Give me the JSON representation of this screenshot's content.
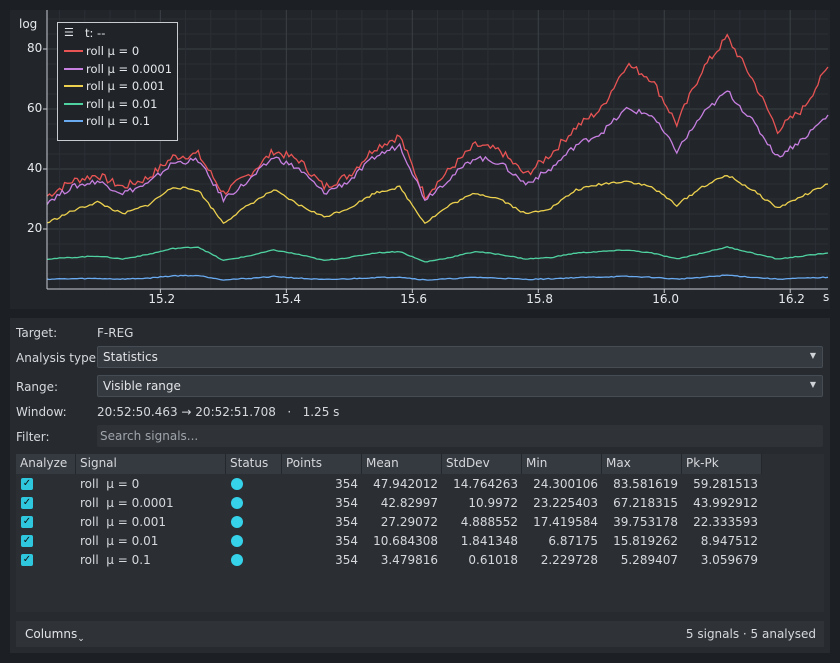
{
  "plot": {
    "y_axis_label": "log",
    "x_unit": "s",
    "legend_title": "t: --",
    "legend_menu_icon": "menu-icon",
    "y_ticks": [
      "20",
      "40",
      "60",
      "80"
    ],
    "x_ticks": [
      "15.2",
      "15.4",
      "15.6",
      "15.8",
      "16.0",
      "16.2"
    ],
    "x_range": [
      15.02,
      16.26
    ],
    "y_range": [
      0,
      93
    ],
    "background": "#22262b",
    "grid": true
  },
  "chart_data": {
    "type": "line",
    "title": "",
    "xlabel": "s",
    "ylabel": "log",
    "xlim": [
      15.02,
      16.26
    ],
    "ylim": [
      0,
      93
    ],
    "legend_position": "top-left",
    "series": [
      {
        "name": "roll μ = 0",
        "color": "#e85353",
        "x": [
          15.02,
          15.06,
          15.1,
          15.14,
          15.18,
          15.22,
          15.26,
          15.3,
          15.34,
          15.38,
          15.42,
          15.46,
          15.5,
          15.54,
          15.58,
          15.62,
          15.66,
          15.7,
          15.74,
          15.78,
          15.82,
          15.86,
          15.9,
          15.94,
          15.98,
          16.02,
          16.06,
          16.1,
          16.14,
          16.18,
          16.22,
          16.26
        ],
        "values": [
          31,
          36,
          38,
          34,
          37,
          44,
          45,
          32,
          38,
          46,
          43,
          34,
          38,
          47,
          51,
          31,
          40,
          48,
          46,
          38,
          45,
          54,
          60,
          75,
          70,
          55,
          73,
          84,
          70,
          53,
          60,
          74
        ]
      },
      {
        "name": "roll μ = 0.0001",
        "color": "#c77fe0",
        "x": [
          15.02,
          15.06,
          15.1,
          15.14,
          15.18,
          15.22,
          15.26,
          15.3,
          15.34,
          15.38,
          15.42,
          15.46,
          15.5,
          15.54,
          15.58,
          15.62,
          15.66,
          15.7,
          15.74,
          15.78,
          15.82,
          15.86,
          15.9,
          15.94,
          15.98,
          16.02,
          16.06,
          16.1,
          16.14,
          16.18,
          16.22,
          16.26
        ],
        "values": [
          29,
          34,
          36,
          32,
          35,
          42,
          43,
          30,
          36,
          44,
          40,
          32,
          36,
          44,
          48,
          30,
          37,
          44,
          42,
          35,
          40,
          48,
          52,
          60,
          58,
          46,
          58,
          66,
          56,
          44,
          50,
          58
        ]
      },
      {
        "name": "roll μ = 0.001",
        "color": "#ecd04e",
        "x": [
          15.02,
          15.06,
          15.1,
          15.14,
          15.18,
          15.22,
          15.26,
          15.3,
          15.34,
          15.38,
          15.42,
          15.46,
          15.5,
          15.54,
          15.58,
          15.62,
          15.66,
          15.7,
          15.74,
          15.78,
          15.82,
          15.86,
          15.9,
          15.94,
          15.98,
          16.02,
          16.06,
          16.1,
          16.14,
          16.18,
          16.22,
          16.26
        ],
        "values": [
          22,
          26,
          29,
          25,
          28,
          34,
          33,
          22,
          28,
          33,
          28,
          24,
          27,
          32,
          34,
          22,
          28,
          32,
          30,
          25,
          27,
          33,
          35,
          36,
          34,
          28,
          34,
          38,
          33,
          27,
          31,
          35
        ]
      },
      {
        "name": "roll μ = 0.01",
        "color": "#4fd1a0",
        "x": [
          15.02,
          15.06,
          15.1,
          15.14,
          15.18,
          15.22,
          15.26,
          15.3,
          15.34,
          15.38,
          15.42,
          15.46,
          15.5,
          15.54,
          15.58,
          15.62,
          15.66,
          15.7,
          15.74,
          15.78,
          15.82,
          15.86,
          15.9,
          15.94,
          15.98,
          16.02,
          16.06,
          16.1,
          16.14,
          16.18,
          16.22,
          16.26
        ],
        "values": [
          10,
          10.5,
          11,
          10,
          11.5,
          13.5,
          14,
          9.5,
          11,
          13,
          11.5,
          9.5,
          10.5,
          12,
          12.5,
          9,
          10.5,
          12.5,
          11.5,
          10,
          10.5,
          12,
          12.5,
          13,
          12,
          10,
          12,
          14,
          12,
          10,
          11,
          12
        ]
      },
      {
        "name": "roll μ = 0.1",
        "color": "#6aaaf0",
        "x": [
          15.02,
          15.06,
          15.1,
          15.14,
          15.18,
          15.22,
          15.26,
          15.3,
          15.34,
          15.38,
          15.42,
          15.46,
          15.5,
          15.54,
          15.58,
          15.62,
          15.66,
          15.7,
          15.74,
          15.78,
          15.82,
          15.86,
          15.9,
          15.94,
          15.98,
          16.02,
          16.06,
          16.1,
          16.14,
          16.18,
          16.22,
          16.26
        ],
        "values": [
          3.3,
          3.4,
          3.5,
          3.3,
          3.6,
          4.4,
          4.5,
          3.1,
          3.5,
          4.2,
          3.6,
          3.1,
          3.4,
          3.8,
          4,
          3,
          3.4,
          3.9,
          3.6,
          3.2,
          3.4,
          3.8,
          4,
          4.2,
          3.9,
          3.3,
          3.9,
          4.6,
          3.9,
          3.3,
          3.6,
          3.9
        ]
      }
    ]
  },
  "analysis": {
    "target_label": "Target:",
    "target_value": "F-REG",
    "analysis_type_label": "Analysis type:",
    "analysis_type_value": "Statistics",
    "range_label": "Range:",
    "range_value": "Visible range",
    "window_label": "Window:",
    "window_value": "20:52:50.463 → 20:52:51.708   ·   1.25 s",
    "filter_label": "Filter:",
    "filter_placeholder": "Search signals...",
    "dropdown_icon": "chevron-down-icon"
  },
  "table": {
    "headers": [
      "Analyze",
      "Signal",
      "Status",
      "Points",
      "Mean",
      "StdDev",
      "Min",
      "Max",
      "Pk-Pk"
    ],
    "rows": [
      {
        "checked": true,
        "signal": "roll  μ = 0",
        "status_color": "#35d2ea",
        "points": "354",
        "mean": "47.942012",
        "stddev": "14.764263",
        "min": "24.300106",
        "max": "83.581619",
        "pkpk": "59.281513"
      },
      {
        "checked": true,
        "signal": "roll  μ = 0.0001",
        "status_color": "#35d2ea",
        "points": "354",
        "mean": "42.82997",
        "stddev": "10.9972",
        "min": "23.225403",
        "max": "67.218315",
        "pkpk": "43.992912"
      },
      {
        "checked": true,
        "signal": "roll  μ = 0.001",
        "status_color": "#35d2ea",
        "points": "354",
        "mean": "27.29072",
        "stddev": "4.888552",
        "min": "17.419584",
        "max": "39.753178",
        "pkpk": "22.333593"
      },
      {
        "checked": true,
        "signal": "roll  μ = 0.01",
        "status_color": "#35d2ea",
        "points": "354",
        "mean": "10.684308",
        "stddev": "1.841348",
        "min": "6.87175",
        "max": "15.819262",
        "pkpk": "8.947512"
      },
      {
        "checked": true,
        "signal": "roll  μ = 0.1",
        "status_color": "#35d2ea",
        "points": "354",
        "mean": "3.479816",
        "stddev": "0.61018",
        "min": "2.229728",
        "max": "5.289407",
        "pkpk": "3.059679"
      }
    ]
  },
  "footer": {
    "columns_label": "Columns",
    "status": "5 signals · 5 analysed"
  }
}
